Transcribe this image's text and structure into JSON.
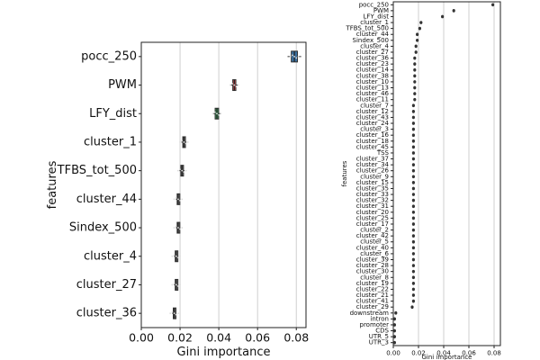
{
  "chart_data": [
    {
      "type": "box",
      "orientation": "horizontal",
      "xlabel": "Gini importance",
      "ylabel": "features",
      "xlim": [
        0.0,
        0.085
      ],
      "xticks": [
        0.0,
        0.02,
        0.04,
        0.06,
        0.08
      ],
      "xtick_labels": [
        "0.00",
        "0.02",
        "0.04",
        "0.06",
        "0.08"
      ],
      "grid": "vertical",
      "box_colors": [
        "#3a6f9e",
        "#c0464a",
        "#3f8f5a",
        "#6b6b6b",
        "#6b6b6b",
        "#6b6b6b",
        "#6b6b6b",
        "#6b6b6b",
        "#6b6b6b",
        "#6b6b6b"
      ],
      "categories": [
        "pocc_250",
        "PWM",
        "LFY_dist",
        "cluster_1",
        "TFBS_tot_500",
        "cluster_44",
        "Sindex_500",
        "cluster_4",
        "cluster_27",
        "cluster_36"
      ],
      "values": [
        0.079,
        0.048,
        0.039,
        0.022,
        0.021,
        0.019,
        0.019,
        0.018,
        0.018,
        0.017
      ]
    },
    {
      "type": "box",
      "orientation": "horizontal",
      "xlabel": "Gini importance",
      "ylabel": "features",
      "xlim": [
        0.0,
        0.085
      ],
      "xticks": [
        0.0,
        0.02,
        0.04,
        0.06,
        0.08
      ],
      "xtick_labels": [
        "0.00",
        "0.02",
        "0.04",
        "0.06",
        "0.08"
      ],
      "grid": "vertical",
      "categories": [
        "pocc_250",
        "PWM",
        "LFY_dist",
        "cluster_1",
        "TFBS_tot_500",
        "cluster_44",
        "Sindex_500",
        "cluster_4",
        "cluster_27",
        "cluster_36",
        "cluster_23",
        "cluster_14",
        "cluster_38",
        "cluster_10",
        "cluster_13",
        "cluster_46",
        "cluster_11",
        "cluster_7",
        "cluster_12",
        "cluster_43",
        "cluster_24",
        "cluster_3",
        "cluster_16",
        "cluster_18",
        "cluster_45",
        "TSS",
        "cluster_37",
        "cluster_34",
        "cluster_26",
        "cluster_9",
        "cluster_15",
        "cluster_35",
        "cluster_33",
        "cluster_32",
        "cluster_31",
        "cluster_20",
        "cluster_25",
        "cluster_17",
        "cluster_2",
        "cluster_42",
        "cluster_5",
        "cluster_40",
        "cluster_6",
        "cluster_39",
        "cluster_28",
        "cluster_30",
        "cluster_8",
        "cluster_19",
        "cluster_22",
        "cluster_21",
        "cluster_41",
        "cluster_29",
        "downstream",
        "intron",
        "promoter",
        "CDS",
        "UTR_5",
        "UTR_3"
      ],
      "values": [
        0.079,
        0.048,
        0.039,
        0.022,
        0.021,
        0.019,
        0.019,
        0.018,
        0.018,
        0.017,
        0.017,
        0.017,
        0.017,
        0.017,
        0.017,
        0.017,
        0.017,
        0.016,
        0.016,
        0.016,
        0.016,
        0.016,
        0.016,
        0.016,
        0.016,
        0.016,
        0.016,
        0.016,
        0.016,
        0.016,
        0.016,
        0.016,
        0.016,
        0.016,
        0.016,
        0.016,
        0.016,
        0.016,
        0.016,
        0.016,
        0.016,
        0.016,
        0.016,
        0.016,
        0.016,
        0.016,
        0.016,
        0.016,
        0.016,
        0.016,
        0.016,
        0.015,
        0.002,
        0.001,
        0.001,
        0.001,
        0.001,
        0.001
      ]
    }
  ]
}
